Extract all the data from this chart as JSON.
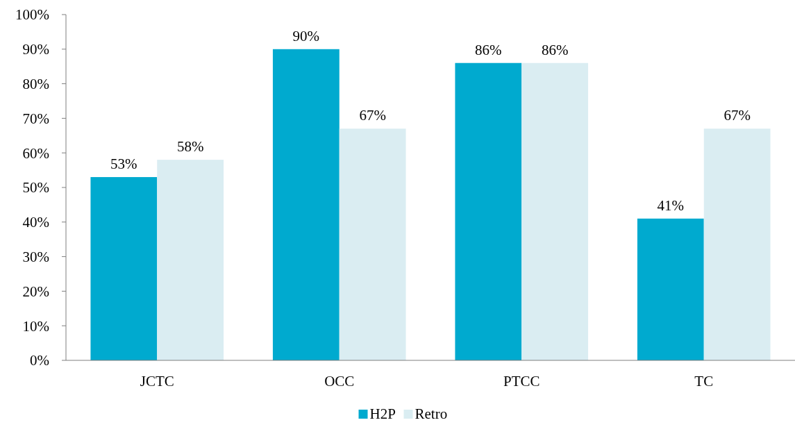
{
  "chart_data": {
    "type": "bar",
    "categories": [
      "JCTC",
      "OCC",
      "PTCC",
      "TC"
    ],
    "series": [
      {
        "name": "H2P",
        "color": "#00aacf",
        "values": [
          53,
          90,
          86,
          41
        ]
      },
      {
        "name": "Retro",
        "color": "#daedf2",
        "values": [
          58,
          67,
          86,
          67
        ]
      }
    ],
    "ylim": [
      0,
      100
    ],
    "yticks": [
      {
        "value": 0,
        "label": "0%"
      },
      {
        "value": 10,
        "label": "10%"
      },
      {
        "value": 20,
        "label": "20%"
      },
      {
        "value": 30,
        "label": "30%"
      },
      {
        "value": 40,
        "label": "40%"
      },
      {
        "value": 50,
        "label": "50%"
      },
      {
        "value": 60,
        "label": "60%"
      },
      {
        "value": 70,
        "label": "70%"
      },
      {
        "value": 80,
        "label": "80%"
      },
      {
        "value": 90,
        "label": "90%"
      },
      {
        "value": 100,
        "label": "100%"
      }
    ],
    "value_labels": [
      [
        "53%",
        "90%",
        "86%",
        "41%"
      ],
      [
        "58%",
        "67%",
        "86%",
        "67%"
      ]
    ],
    "legend": "bottom",
    "grid": false
  }
}
